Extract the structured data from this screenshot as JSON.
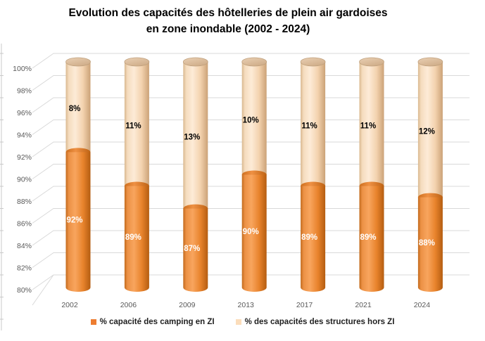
{
  "title": {
    "line1": "Evolution des capacités des hôtelleries de plein air gardoises",
    "line2": "en zone inondable (2002 - 2024)"
  },
  "chart_data": {
    "type": "bar",
    "variant": "3d-cylinder-stacked",
    "stacked": true,
    "title": "Evolution des capacités des hôtelleries de plein air gardoises en zone inondable (2002 - 2024)",
    "categories": [
      "2002",
      "2006",
      "2009",
      "2013",
      "2017",
      "2021",
      "2024"
    ],
    "series": [
      {
        "name": "% capacité des camping en ZI",
        "color": "#ED7D31",
        "values": [
          92,
          89,
          87,
          90,
          89,
          89,
          88
        ],
        "labels": [
          "92%",
          "89%",
          "87%",
          "90%",
          "89%",
          "89%",
          "88%"
        ],
        "label_color": "#FFFFFF"
      },
      {
        "name": "% des capacités des structures hors ZI",
        "color": "#FBDDBB",
        "values": [
          8,
          11,
          13,
          10,
          11,
          11,
          12
        ],
        "labels": [
          "8%",
          "11%",
          "13%",
          "10%",
          "11%",
          "11%",
          "12%"
        ],
        "label_color": "#000000"
      }
    ],
    "y_axis": {
      "min": 80,
      "max": 100,
      "step": 2,
      "tick_labels": [
        "80%",
        "82%",
        "84%",
        "86%",
        "88%",
        "90%",
        "92%",
        "94%",
        "96%",
        "98%",
        "100%"
      ]
    },
    "grid": true,
    "legend_position": "bottom"
  },
  "legend": {
    "items": [
      {
        "label": "% capacité des camping en ZI",
        "color": "#ED7D31"
      },
      {
        "label": "% des capacités des structures hors ZI",
        "color": "#FBDDBB"
      }
    ]
  },
  "colors": {
    "grid": "#D9D9D9",
    "axis_line": "#C9C9C9",
    "axis_text": "#595959",
    "title_text": "#000000"
  }
}
